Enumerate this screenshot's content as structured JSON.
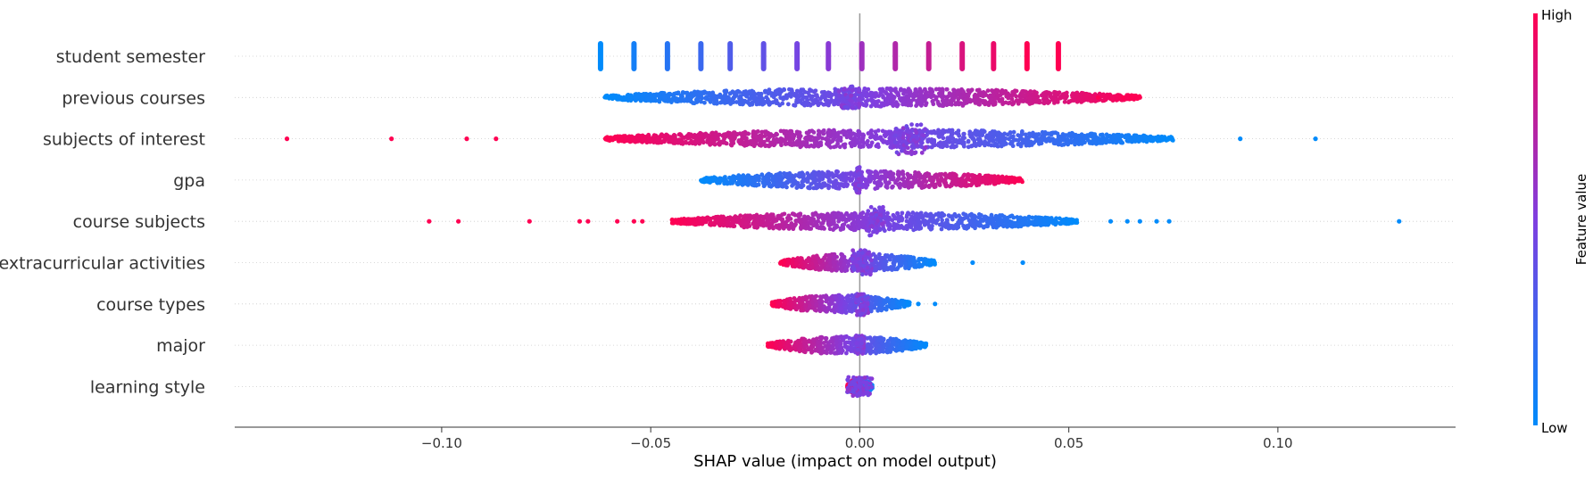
{
  "chart_data": {
    "type": "scatter",
    "subtype": "shap-beeswarm",
    "xlabel": "SHAP value (impact on model output)",
    "xticks": [
      -0.1,
      -0.05,
      0.0,
      0.05,
      0.1
    ],
    "xtick_labels": [
      "−0.10",
      "−0.05",
      "0.00",
      "0.05",
      "0.10"
    ],
    "xlim": [
      -0.1495,
      0.1425
    ],
    "colorbar": {
      "title": "Feature value",
      "high_label": "High",
      "low_label": "Low",
      "low_color": "#008bfb",
      "mid_color": "#7f3fe0",
      "high_color": "#ff0052"
    },
    "zero_line_color": "#999999",
    "features": [
      {
        "name": "student semester",
        "style": "bars",
        "points": [
          [
            -0.062,
            0.0
          ],
          [
            -0.054,
            0.08
          ],
          [
            -0.046,
            0.15
          ],
          [
            -0.038,
            0.23
          ],
          [
            -0.031,
            0.31
          ],
          [
            -0.023,
            0.38
          ],
          [
            -0.015,
            0.46
          ],
          [
            -0.0075,
            0.54
          ],
          [
            0.0005,
            0.62
          ],
          [
            0.0085,
            0.69
          ],
          [
            0.0165,
            0.77
          ],
          [
            0.0245,
            0.85
          ],
          [
            0.032,
            0.92
          ],
          [
            0.04,
            1.0
          ],
          [
            0.0475,
            1.0
          ]
        ]
      },
      {
        "name": "previous courses",
        "style": "swarm",
        "range": [
          -0.061,
          0.067
        ],
        "dense_start_value": 0.0,
        "dense_end_value": 1.0,
        "cluster": [
          -0.005,
          0.0
        ],
        "cluster_value": 0.5,
        "cluster_height": 0.7,
        "points": [
          [
            0.057,
            1.0
          ],
          [
            0.063,
            1.0
          ],
          [
            0.065,
            1.0
          ],
          [
            0.067,
            1.0
          ]
        ]
      },
      {
        "name": "subjects of interest",
        "style": "swarm",
        "range": [
          -0.061,
          0.075
        ],
        "dense_start_value": 1.0,
        "dense_end_value": 0.0,
        "cluster": [
          0.008,
          0.016
        ],
        "cluster_value": 0.5,
        "cluster_height": 1.0,
        "points": [
          [
            -0.137,
            1.0
          ],
          [
            -0.112,
            1.0
          ],
          [
            -0.094,
            1.0
          ],
          [
            -0.087,
            1.0
          ],
          [
            0.091,
            0.0
          ],
          [
            0.109,
            0.0
          ]
        ]
      },
      {
        "name": "gpa",
        "style": "swarm",
        "range": [
          -0.038,
          0.039
        ],
        "dense_start_value": 0.0,
        "dense_end_value": 1.0,
        "cluster": [
          -0.001,
          0.0
        ],
        "cluster_value": 0.5,
        "cluster_height": 0.8,
        "points": []
      },
      {
        "name": "course subjects",
        "style": "swarm",
        "range": [
          -0.045,
          0.052
        ],
        "dense_start_value": 1.0,
        "dense_end_value": 0.0,
        "cluster": [
          0.002,
          0.006
        ],
        "cluster_value": 0.5,
        "cluster_height": 0.9,
        "points": [
          [
            -0.103,
            1.0
          ],
          [
            -0.096,
            1.0
          ],
          [
            -0.079,
            1.0
          ],
          [
            -0.067,
            1.0
          ],
          [
            -0.065,
            1.0
          ],
          [
            -0.058,
            1.0
          ],
          [
            -0.054,
            1.0
          ],
          [
            -0.052,
            1.0
          ],
          [
            0.06,
            0.0
          ],
          [
            0.064,
            0.0
          ],
          [
            0.067,
            0.0
          ],
          [
            0.071,
            0.0
          ],
          [
            0.074,
            0.0
          ],
          [
            0.129,
            0.0
          ]
        ]
      },
      {
        "name": "extracurricular activities",
        "style": "swarm",
        "range": [
          -0.019,
          0.018
        ],
        "dense_start_value": 1.0,
        "dense_end_value": 0.0,
        "cluster": [
          -0.002,
          0.003
        ],
        "cluster_value": 0.5,
        "cluster_height": 0.8,
        "points": [
          [
            0.027,
            0.0
          ],
          [
            0.039,
            0.0
          ]
        ]
      },
      {
        "name": "course types",
        "style": "swarm",
        "range": [
          -0.021,
          0.012
        ],
        "dense_start_value": 1.0,
        "dense_end_value": 0.0,
        "cluster": [
          -0.001,
          0.002
        ],
        "cluster_value": 0.5,
        "cluster_height": 0.7,
        "points": [
          [
            0.014,
            0.0
          ],
          [
            0.018,
            0.0
          ]
        ]
      },
      {
        "name": "major",
        "style": "swarm",
        "range": [
          -0.022,
          0.016
        ],
        "dense_start_value": 1.0,
        "dense_end_value": 0.0,
        "cluster": [
          -0.001,
          0.001
        ],
        "cluster_value": 0.5,
        "cluster_height": 0.6,
        "points": []
      },
      {
        "name": "learning style",
        "style": "swarm",
        "range": [
          -0.003,
          0.003
        ],
        "dense_start_value": 1.0,
        "dense_end_value": 0.0,
        "cluster": [
          -0.003,
          0.003
        ],
        "cluster_value": 0.5,
        "cluster_height": 0.6,
        "points": []
      }
    ]
  }
}
